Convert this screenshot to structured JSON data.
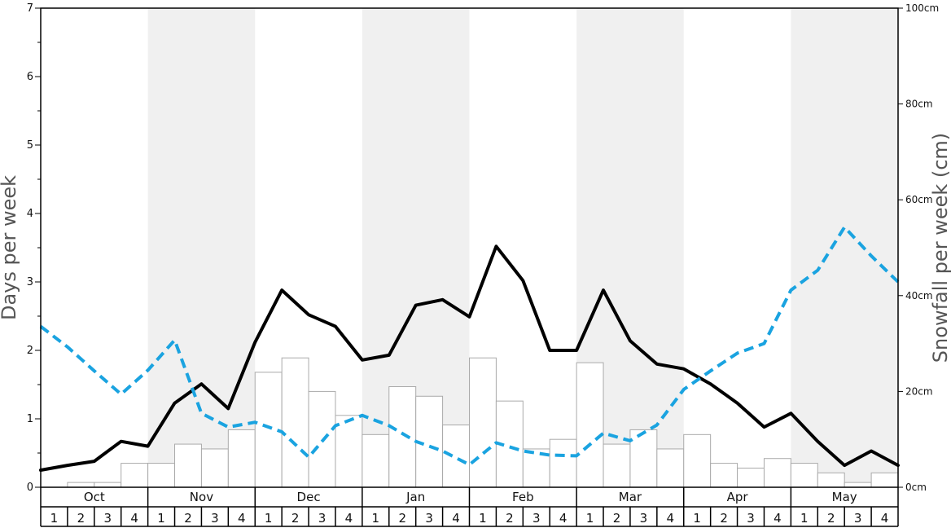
{
  "chart_data": {
    "type": "bar+line",
    "title": "",
    "ylabel": "Days per week",
    "y2label": "Snowfall per week (cm)",
    "ylim": [
      0,
      7
    ],
    "y2lim": [
      0,
      100
    ],
    "y_ticks": [
      "0",
      "1",
      "2",
      "3",
      "4",
      "5",
      "6",
      "7"
    ],
    "y2_ticks": [
      "0cm",
      "20cm",
      "40cm",
      "60cm",
      "80cm",
      "100cm"
    ],
    "months": [
      "Oct",
      "Nov",
      "Dec",
      "Jan",
      "Feb",
      "Mar",
      "Apr",
      "May"
    ],
    "weeks": [
      "1",
      "2",
      "3",
      "4"
    ],
    "shaded_months": [
      "Nov",
      "Jan",
      "Mar",
      "May"
    ],
    "colors": {
      "bars_fill": "#ffffff",
      "bars_stroke": "#aaaaaa",
      "solid_line": "#000000",
      "dashed_line": "#1aa3e0",
      "shade": "#f0f0f0"
    },
    "snowfall_cm": [
      0,
      1,
      1,
      5,
      5,
      9,
      8,
      12,
      24,
      27,
      20,
      15,
      11,
      21,
      19,
      13,
      27,
      18,
      8,
      10,
      26,
      9,
      12,
      8,
      11,
      5,
      4,
      6,
      5,
      3,
      1,
      3
    ],
    "solid_line_days": [
      0.25,
      0.32,
      0.38,
      0.67,
      0.6,
      1.23,
      1.51,
      1.15,
      2.12,
      2.88,
      2.52,
      2.35,
      1.86,
      1.93,
      2.66,
      2.74,
      2.49,
      3.52,
      3.02,
      2.0,
      2.0,
      2.88,
      2.14,
      1.8,
      1.73,
      1.51,
      1.23,
      0.88,
      1.08,
      0.67,
      0.32,
      0.53,
      0.32
    ],
    "dashed_line_days": [
      2.35,
      2.05,
      1.7,
      1.36,
      1.71,
      2.15,
      1.08,
      0.88,
      0.95,
      0.81,
      0.44,
      0.9,
      1.05,
      0.9,
      0.67,
      0.53,
      0.33,
      0.65,
      0.53,
      0.47,
      0.46,
      0.79,
      0.68,
      0.91,
      1.43,
      1.7,
      1.96,
      2.1,
      2.88,
      3.17,
      3.8,
      3.38,
      3.0
    ]
  }
}
